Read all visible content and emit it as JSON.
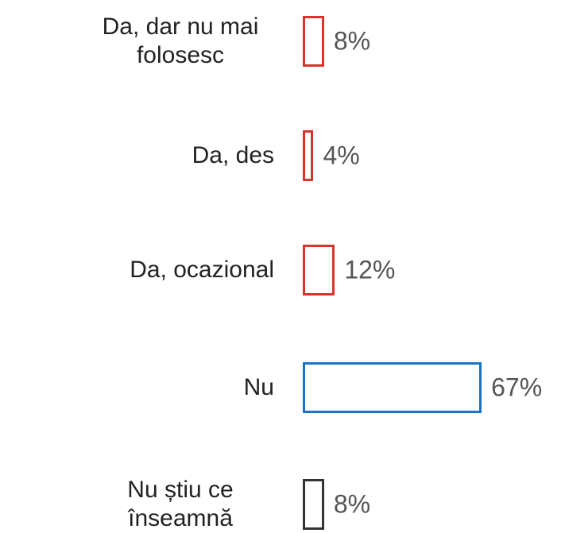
{
  "chart_data": {
    "type": "hbar",
    "categories": [
      "Da, dar nu mai folosesc",
      "Da, des",
      "Da, ocazional",
      "Nu",
      "Nu știu ce înseamnă"
    ],
    "values": [
      8,
      4,
      12,
      67,
      8
    ],
    "value_labels": [
      "8%",
      "4%",
      "12%",
      "67%",
      "8%"
    ],
    "colors": [
      "#d9342b",
      "#d9342b",
      "#d9342b",
      "#1a73c8",
      "#333333"
    ]
  }
}
